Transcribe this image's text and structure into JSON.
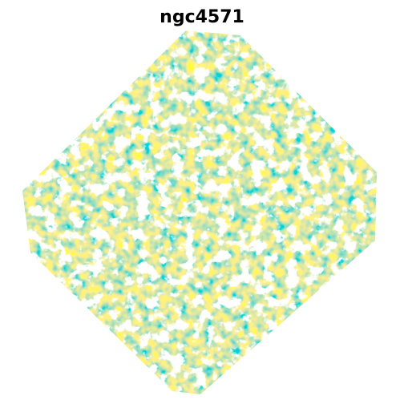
{
  "title": "ngc4571"
}
